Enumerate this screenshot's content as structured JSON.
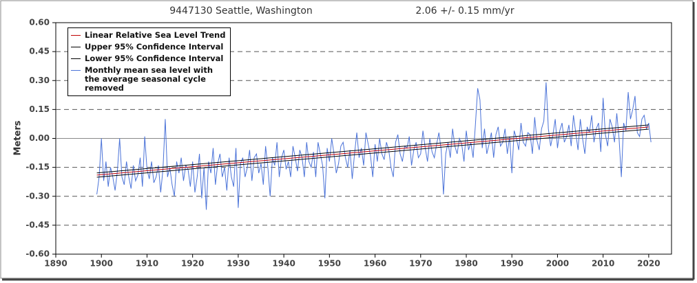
{
  "chart_data": {
    "type": "line",
    "title": "9447130 Seattle, Washington",
    "subtitle": "2.06 +/-  0.15 mm/yr",
    "y_label": "Meters",
    "xlim": [
      1890,
      2025
    ],
    "xticks": [
      1890,
      1900,
      1910,
      1920,
      1930,
      1940,
      1950,
      1960,
      1970,
      1980,
      1990,
      2000,
      2010,
      2020
    ],
    "ylim": [
      -0.6,
      0.6
    ],
    "yticks": [
      {
        "value": -0.6,
        "label": "-0.60"
      },
      {
        "value": -0.45,
        "label": "-0.45"
      },
      {
        "value": -0.3,
        "label": "-0.30"
      },
      {
        "value": -0.15,
        "label": "-0.15"
      },
      {
        "value": 0,
        "label": "0.00"
      },
      {
        "value": 0.15,
        "label": "0.15"
      },
      {
        "value": 0.3,
        "label": "0.30"
      },
      {
        "value": 0.45,
        "label": "0.45"
      },
      {
        "value": 0.6,
        "label": "0.60"
      }
    ],
    "grid": true,
    "legend": "upper left",
    "series": [
      {
        "name": "Linear Relative Sea Level Trend",
        "color": "#c00000",
        "x": [
          1899,
          2020
        ],
        "values": [
          -0.19,
          0.059
        ]
      },
      {
        "name": "Upper 95% Confidence Interval",
        "color": "#000000",
        "x": [
          1899,
          2020
        ],
        "values": [
          -0.179,
          0.07
        ]
      },
      {
        "name": "Lower 95% Confidence Interval",
        "color": "#000000",
        "x": [
          1899,
          2020
        ],
        "values": [
          -0.201,
          0.048
        ]
      },
      {
        "name": "Monthly mean sea level with the average seasonal cycle removed",
        "color": "#4a72d8",
        "x": [
          1899,
          1899.5,
          1900,
          1900.5,
          1901,
          1901.5,
          1902,
          1902.5,
          1903,
          1903.5,
          1904,
          1904.5,
          1905,
          1905.5,
          1906,
          1906.5,
          1907,
          1907.5,
          1908,
          1908.5,
          1909,
          1909.5,
          1910,
          1910.5,
          1911,
          1911.5,
          1912,
          1912.5,
          1913,
          1913.5,
          1914,
          1914.5,
          1915,
          1915.5,
          1916,
          1916.5,
          1917,
          1917.5,
          1918,
          1918.5,
          1919,
          1919.5,
          1920,
          1920.5,
          1921,
          1921.5,
          1922,
          1922.5,
          1923,
          1923.5,
          1924,
          1924.5,
          1925,
          1925.5,
          1926,
          1926.5,
          1927,
          1927.5,
          1928,
          1928.5,
          1929,
          1929.5,
          1930,
          1930.5,
          1931,
          1931.5,
          1932,
          1932.5,
          1933,
          1933.5,
          1934,
          1934.5,
          1935,
          1935.5,
          1936,
          1936.5,
          1937,
          1937.5,
          1938,
          1938.5,
          1939,
          1939.5,
          1940,
          1940.5,
          1941,
          1941.5,
          1942,
          1942.5,
          1943,
          1943.5,
          1944,
          1944.5,
          1945,
          1945.5,
          1946,
          1946.5,
          1947,
          1947.5,
          1948,
          1948.5,
          1949,
          1949.5,
          1950,
          1950.5,
          1951,
          1951.5,
          1952,
          1952.5,
          1953,
          1953.5,
          1954,
          1954.5,
          1955,
          1955.5,
          1956,
          1956.5,
          1957,
          1957.5,
          1958,
          1958.5,
          1959,
          1959.5,
          1960,
          1960.5,
          1961,
          1961.5,
          1962,
          1962.5,
          1963,
          1963.5,
          1964,
          1964.5,
          1965,
          1965.5,
          1966,
          1966.5,
          1967,
          1967.5,
          1968,
          1968.5,
          1969,
          1969.5,
          1970,
          1970.5,
          1971,
          1971.5,
          1972,
          1972.5,
          1973,
          1973.5,
          1974,
          1974.5,
          1975,
          1975.5,
          1976,
          1976.5,
          1977,
          1977.5,
          1978,
          1978.5,
          1979,
          1979.5,
          1980,
          1980.5,
          1981,
          1981.5,
          1982,
          1982.5,
          1983,
          1983.5,
          1984,
          1984.5,
          1985,
          1985.5,
          1986,
          1986.5,
          1987,
          1987.5,
          1988,
          1988.5,
          1989,
          1989.5,
          1990,
          1990.5,
          1991,
          1991.5,
          1992,
          1992.5,
          1993,
          1993.5,
          1994,
          1994.5,
          1995,
          1995.5,
          1996,
          1996.5,
          1997,
          1997.5,
          1998,
          1998.5,
          1999,
          1999.5,
          2000,
          2000.5,
          2001,
          2001.5,
          2002,
          2002.5,
          2003,
          2003.5,
          2004,
          2004.5,
          2005,
          2005.5,
          2006,
          2006.5,
          2007,
          2007.5,
          2008,
          2008.5,
          2009,
          2009.5,
          2010,
          2010.5,
          2011,
          2011.5,
          2012,
          2012.5,
          2013,
          2013.5,
          2014,
          2014.5,
          2015,
          2015.5,
          2016,
          2016.5,
          2017,
          2017.5,
          2018,
          2018.5,
          2019,
          2019.5,
          2020,
          2020.5
        ],
        "values": [
          -0.29,
          -0.2,
          0.0,
          -0.22,
          -0.12,
          -0.25,
          -0.15,
          -0.2,
          -0.27,
          -0.17,
          0.0,
          -0.2,
          -0.24,
          -0.12,
          -0.2,
          -0.26,
          -0.14,
          -0.22,
          -0.19,
          -0.1,
          -0.25,
          0.01,
          -0.16,
          -0.21,
          -0.12,
          -0.23,
          -0.2,
          -0.14,
          -0.28,
          -0.16,
          0.1,
          -0.2,
          -0.15,
          -0.24,
          -0.3,
          -0.12,
          -0.18,
          -0.1,
          -0.22,
          -0.14,
          -0.16,
          -0.25,
          -0.12,
          -0.28,
          -0.2,
          -0.08,
          -0.31,
          -0.15,
          -0.37,
          -0.12,
          -0.18,
          -0.05,
          -0.24,
          -0.13,
          -0.08,
          -0.2,
          -0.15,
          -0.27,
          -0.1,
          -0.2,
          -0.25,
          -0.05,
          -0.36,
          -0.13,
          -0.1,
          -0.2,
          -0.15,
          -0.06,
          -0.22,
          -0.1,
          -0.08,
          -0.18,
          -0.13,
          -0.24,
          -0.04,
          -0.15,
          -0.3,
          -0.1,
          -0.14,
          -0.02,
          -0.2,
          -0.1,
          -0.06,
          -0.16,
          -0.12,
          -0.2,
          -0.04,
          -0.1,
          -0.17,
          -0.06,
          -0.1,
          -0.2,
          -0.02,
          -0.12,
          -0.15,
          -0.07,
          -0.2,
          -0.02,
          -0.08,
          -0.14,
          -0.31,
          -0.05,
          -0.12,
          0.0,
          -0.08,
          -0.18,
          -0.13,
          -0.04,
          -0.02,
          -0.1,
          -0.15,
          -0.06,
          -0.21,
          -0.08,
          0.03,
          -0.1,
          -0.05,
          -0.14,
          0.03,
          -0.03,
          -0.09,
          -0.2,
          -0.03,
          -0.12,
          0.0,
          -0.08,
          -0.11,
          -0.02,
          -0.06,
          -0.15,
          -0.2,
          -0.02,
          0.02,
          -0.08,
          -0.12,
          -0.04,
          -0.05,
          0.01,
          -0.14,
          -0.06,
          -0.02,
          -0.1,
          -0.08,
          0.04,
          -0.05,
          -0.12,
          0.0,
          -0.07,
          -0.1,
          -0.03,
          0.03,
          -0.06,
          -0.29,
          -0.08,
          -0.02,
          -0.1,
          0.05,
          -0.04,
          -0.08,
          0.0,
          -0.03,
          -0.12,
          0.04,
          -0.06,
          -0.02,
          -0.1,
          0.07,
          0.26,
          0.2,
          -0.05,
          0.05,
          -0.08,
          -0.03,
          0.03,
          -0.1,
          0.02,
          0.06,
          -0.04,
          -0.02,
          0.05,
          -0.08,
          0.01,
          -0.18,
          0.04,
          0.0,
          -0.06,
          0.08,
          -0.02,
          -0.04,
          0.03,
          0.02,
          -0.08,
          0.11,
          -0.01,
          -0.06,
          0.05,
          0.09,
          0.29,
          0.05,
          -0.04,
          0.02,
          0.1,
          -0.05,
          0.04,
          0.08,
          -0.02,
          0.01,
          0.07,
          -0.04,
          0.12,
          0.03,
          -0.06,
          0.1,
          0.0,
          -0.08,
          0.06,
          0.03,
          0.12,
          -0.02,
          0.05,
          0.08,
          -0.07,
          0.21,
          0.02,
          -0.04,
          0.1,
          0.06,
          -0.02,
          0.13,
          0.0,
          -0.2,
          0.08,
          0.04,
          0.24,
          0.1,
          0.15,
          0.22,
          0.03,
          0.01,
          0.1,
          0.12,
          0.05,
          0.08,
          -0.02
        ]
      }
    ]
  }
}
